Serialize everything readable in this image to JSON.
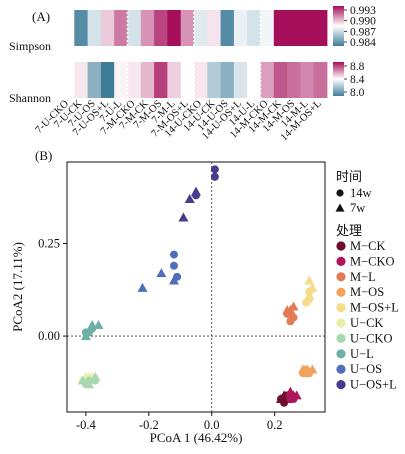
{
  "chart_data": [
    {
      "type": "heatmap",
      "panel_label": "(A)",
      "columns": [
        "7-U-CKO",
        "7-U-CK",
        "7-U-OS",
        "7-U-OS+L",
        "7-U-L",
        "7-M-CKO",
        "7-M-CK",
        "7-M-OS",
        "7-M-L",
        "7-M-OS+L",
        "14-U-CKO",
        "14-U-CK",
        "14-U-OS",
        "14-U-OS+L",
        "14-U-L",
        "14-M-CKO",
        "14-M-CK",
        "14-M-OS",
        "14-M-L",
        "14-M-OS+L"
      ],
      "rows": [
        {
          "name": "Simpson",
          "values": [
            0.9885,
            0.9845,
            0.9875,
            0.9895,
            0.991,
            0.9875,
            0.9905,
            0.992,
            0.9935,
            0.9905,
            0.9878,
            0.989,
            0.9845,
            0.988,
            0.9875,
            0.9882,
            0.993,
            0.9932,
            0.9933,
            0.9934
          ],
          "scale": {
            "min": 0.984,
            "max": 0.993,
            "ticks": [
              "0.993",
              "0.990",
              "0.987",
              "0.984"
            ]
          }
        },
        {
          "name": "Shannon",
          "values": [
            8.4,
            8.45,
            8.1,
            7.9,
            8.42,
            8.45,
            8.55,
            8.8,
            8.5,
            8.4,
            8.45,
            8.2,
            8.1,
            8.3,
            8.4,
            8.6,
            8.75,
            8.7,
            8.65,
            8.7
          ],
          "scale": {
            "min": 7.9,
            "max": 8.9,
            "ticks": [
              "8.8",
              "8.4",
              "8.0"
            ]
          }
        }
      ],
      "colormap": [
        "#3f7c9a",
        "#ffffff",
        "#a50f5a"
      ]
    },
    {
      "type": "scatter",
      "panel_label": "(B)",
      "xlabel": "PCoA 1 (46.42%)",
      "ylabel": "PCoA2 (17.11%)",
      "xlim": [
        -0.46,
        0.36
      ],
      "ylim": [
        -0.205,
        0.47
      ],
      "xticks": [
        "-0.4",
        "-0.2",
        "0.0",
        "0.2"
      ],
      "yticks": [
        "0.00",
        "0.25"
      ],
      "reference_lines": {
        "x": 0,
        "y": 0
      },
      "shape_legend_title": "时间",
      "shape_legend": [
        {
          "label": "14w",
          "shape": "circle"
        },
        {
          "label": "7w",
          "shape": "triangle"
        }
      ],
      "color_legend_title": "处理",
      "series": [
        {
          "name": "M−CK",
          "color": "#6e0f30",
          "points": [
            {
              "x": 0.22,
              "y": -0.17,
              "t": "14w"
            },
            {
              "x": 0.24,
              "y": -0.16,
              "t": "14w"
            },
            {
              "x": 0.23,
              "y": -0.18,
              "t": "14w"
            },
            {
              "x": 0.22,
              "y": -0.17,
              "t": "7w"
            },
            {
              "x": 0.24,
              "y": -0.17,
              "t": "7w"
            },
            {
              "x": 0.23,
              "y": -0.16,
              "t": "7w"
            }
          ]
        },
        {
          "name": "M−CKO",
          "color": "#b0175a",
          "points": [
            {
              "x": 0.25,
              "y": -0.17,
              "t": "14w"
            },
            {
              "x": 0.26,
              "y": -0.17,
              "t": "14w"
            },
            {
              "x": 0.25,
              "y": -0.16,
              "t": "14w"
            },
            {
              "x": 0.26,
              "y": -0.16,
              "t": "7w"
            },
            {
              "x": 0.27,
              "y": -0.16,
              "t": "7w"
            },
            {
              "x": 0.25,
              "y": -0.15,
              "t": "7w"
            }
          ]
        },
        {
          "name": "M−L",
          "color": "#e27a55",
          "points": [
            {
              "x": 0.24,
              "y": 0.06,
              "t": "14w"
            },
            {
              "x": 0.26,
              "y": 0.05,
              "t": "14w"
            },
            {
              "x": 0.25,
              "y": 0.04,
              "t": "14w"
            },
            {
              "x": 0.24,
              "y": 0.07,
              "t": "7w"
            },
            {
              "x": 0.26,
              "y": 0.08,
              "t": "7w"
            },
            {
              "x": 0.25,
              "y": 0.07,
              "t": "7w"
            }
          ]
        },
        {
          "name": "M−OS",
          "color": "#f1a35b",
          "points": [
            {
              "x": 0.29,
              "y": -0.1,
              "t": "14w"
            },
            {
              "x": 0.3,
              "y": -0.09,
              "t": "14w"
            },
            {
              "x": 0.31,
              "y": -0.1,
              "t": "14w"
            },
            {
              "x": 0.29,
              "y": -0.09,
              "t": "7w"
            },
            {
              "x": 0.3,
              "y": -0.1,
              "t": "7w"
            },
            {
              "x": 0.32,
              "y": -0.09,
              "t": "7w"
            }
          ]
        },
        {
          "name": "M−OS+L",
          "color": "#f6dc8a",
          "points": [
            {
              "x": 0.31,
              "y": 0.12,
              "t": "14w"
            },
            {
              "x": 0.31,
              "y": 0.1,
              "t": "14w"
            },
            {
              "x": 0.3,
              "y": 0.09,
              "t": "14w"
            },
            {
              "x": 0.31,
              "y": 0.15,
              "t": "7w"
            },
            {
              "x": 0.32,
              "y": 0.13,
              "t": "7w"
            },
            {
              "x": 0.31,
              "y": 0.11,
              "t": "7w"
            }
          ]
        },
        {
          "name": "U−CK",
          "color": "#e8f0a8",
          "points": [
            {
              "x": -0.41,
              "y": -0.12,
              "t": "14w"
            },
            {
              "x": -0.4,
              "y": -0.12,
              "t": "14w"
            },
            {
              "x": -0.38,
              "y": -0.12,
              "t": "14w"
            },
            {
              "x": -0.4,
              "y": -0.11,
              "t": "7w"
            },
            {
              "x": -0.39,
              "y": -0.11,
              "t": "7w"
            },
            {
              "x": -0.38,
              "y": -0.11,
              "t": "7w"
            }
          ]
        },
        {
          "name": "U−CKO",
          "color": "#a8d8b0",
          "points": [
            {
              "x": -0.4,
              "y": -0.13,
              "t": "14w"
            },
            {
              "x": -0.39,
              "y": -0.12,
              "t": "14w"
            },
            {
              "x": -0.37,
              "y": -0.12,
              "t": "14w"
            },
            {
              "x": -0.41,
              "y": -0.12,
              "t": "7w"
            },
            {
              "x": -0.37,
              "y": -0.11,
              "t": "7w"
            },
            {
              "x": -0.39,
              "y": -0.13,
              "t": "7w"
            }
          ]
        },
        {
          "name": "U−L",
          "color": "#6fb0a8",
          "points": [
            {
              "x": -0.4,
              "y": 0.01,
              "t": "14w"
            },
            {
              "x": -0.39,
              "y": 0.01,
              "t": "14w"
            },
            {
              "x": -0.38,
              "y": 0.02,
              "t": "14w"
            },
            {
              "x": -0.4,
              "y": 0.0,
              "t": "7w"
            },
            {
              "x": -0.38,
              "y": 0.03,
              "t": "7w"
            },
            {
              "x": -0.36,
              "y": 0.03,
              "t": "7w"
            }
          ]
        },
        {
          "name": "U−OS",
          "color": "#4f6fb8",
          "points": [
            {
              "x": -0.12,
              "y": 0.22,
              "t": "14w"
            },
            {
              "x": -0.12,
              "y": 0.19,
              "t": "14w"
            },
            {
              "x": -0.11,
              "y": 0.16,
              "t": "14w"
            },
            {
              "x": -0.22,
              "y": 0.13,
              "t": "7w"
            },
            {
              "x": -0.16,
              "y": 0.17,
              "t": "7w"
            },
            {
              "x": -0.12,
              "y": 0.15,
              "t": "7w"
            }
          ]
        },
        {
          "name": "U−OS+L",
          "color": "#4a3a8c",
          "points": [
            {
              "x": 0.01,
              "y": 0.45,
              "t": "14w"
            },
            {
              "x": 0.01,
              "y": 0.43,
              "t": "14w"
            },
            {
              "x": -0.05,
              "y": 0.38,
              "t": "14w"
            },
            {
              "x": -0.07,
              "y": 0.37,
              "t": "7w"
            },
            {
              "x": -0.05,
              "y": 0.39,
              "t": "7w"
            },
            {
              "x": -0.09,
              "y": 0.32,
              "t": "7w"
            }
          ]
        }
      ]
    }
  ]
}
